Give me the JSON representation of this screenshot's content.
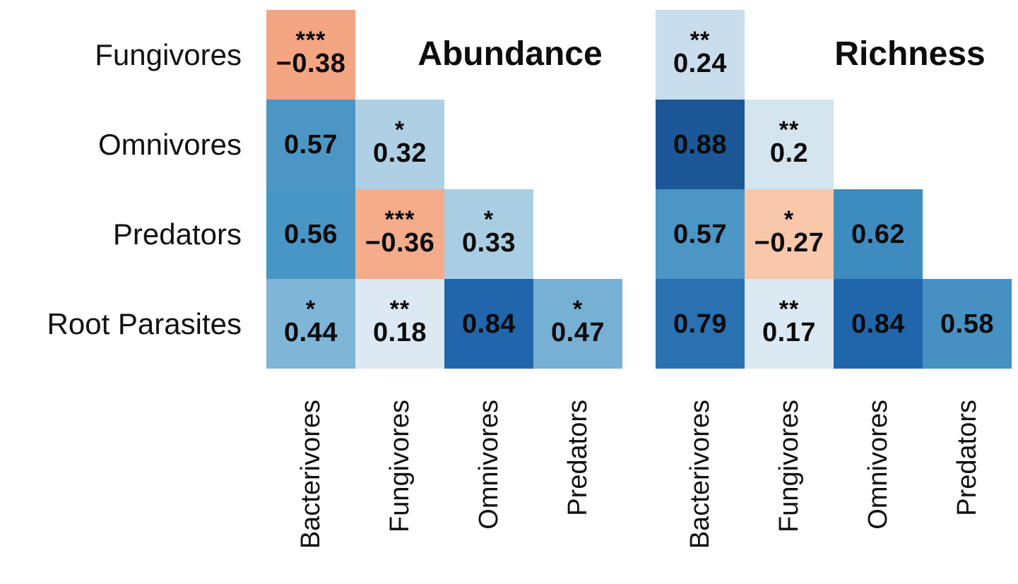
{
  "chart_data": {
    "type": "heatmap",
    "subtype": "lower-triangular-correlation-matrix-pair",
    "legend_position": "none",
    "grid": false,
    "row_labels": [
      "Fungivores",
      "Omnivores",
      "Predators",
      "Root Parasites"
    ],
    "col_labels": [
      "Bacterivores",
      "Fungivores",
      "Omnivores",
      "Predators"
    ],
    "value_range": [
      -1,
      1
    ],
    "colors": {
      "negative_accent": "#F4A582",
      "positive_accent": "#2166AC",
      "background": "#ffffff",
      "text": "#0a0a0a"
    },
    "panels": [
      {
        "title": "Abundance",
        "cells": [
          {
            "row": 0,
            "col": 0,
            "value": -0.38,
            "display": "−0.38",
            "stars": "***",
            "color": "#F4A582"
          },
          {
            "row": 1,
            "col": 0,
            "value": 0.57,
            "display": "0.57",
            "stars": "",
            "color": "#4B96C5"
          },
          {
            "row": 1,
            "col": 1,
            "value": 0.32,
            "display": "0.32",
            "stars": "*",
            "color": "#AFD0E4"
          },
          {
            "row": 2,
            "col": 0,
            "value": 0.56,
            "display": "0.56",
            "stars": "",
            "color": "#4896C5"
          },
          {
            "row": 2,
            "col": 1,
            "value": -0.36,
            "display": "−0.36",
            "stars": "***",
            "color": "#F5AC8B"
          },
          {
            "row": 2,
            "col": 2,
            "value": 0.33,
            "display": "0.33",
            "stars": "*",
            "color": "#A9CEE3"
          },
          {
            "row": 3,
            "col": 0,
            "value": 0.44,
            "display": "0.44",
            "stars": "*",
            "color": "#7FB5D7"
          },
          {
            "row": 3,
            "col": 1,
            "value": 0.18,
            "display": "0.18",
            "stars": "**",
            "color": "#DCE9F2"
          },
          {
            "row": 3,
            "col": 2,
            "value": 0.84,
            "display": "0.84",
            "stars": "",
            "color": "#2166AC"
          },
          {
            "row": 3,
            "col": 3,
            "value": 0.47,
            "display": "0.47",
            "stars": "*",
            "color": "#76B0D4"
          }
        ]
      },
      {
        "title": "Richness",
        "cells": [
          {
            "row": 0,
            "col": 0,
            "value": 0.24,
            "display": "0.24",
            "stars": "**",
            "color": "#C9DDEC"
          },
          {
            "row": 1,
            "col": 0,
            "value": 0.88,
            "display": "0.88",
            "stars": "",
            "color": "#1B5796"
          },
          {
            "row": 1,
            "col": 1,
            "value": 0.2,
            "display": "0.2",
            "stars": "**",
            "color": "#D5E5F0"
          },
          {
            "row": 2,
            "col": 0,
            "value": 0.57,
            "display": "0.57",
            "stars": "",
            "color": "#4B96C5"
          },
          {
            "row": 2,
            "col": 1,
            "value": -0.27,
            "display": "−0.27",
            "stars": "*",
            "color": "#F9C7A9"
          },
          {
            "row": 2,
            "col": 2,
            "value": 0.62,
            "display": "0.62",
            "stars": "",
            "color": "#3E8BC0"
          },
          {
            "row": 3,
            "col": 0,
            "value": 0.79,
            "display": "0.79",
            "stars": "",
            "color": "#2A71B2"
          },
          {
            "row": 3,
            "col": 1,
            "value": 0.17,
            "display": "0.17",
            "stars": "**",
            "color": "#DBE9F2"
          },
          {
            "row": 3,
            "col": 2,
            "value": 0.84,
            "display": "0.84",
            "stars": "",
            "color": "#2066AA"
          },
          {
            "row": 3,
            "col": 3,
            "value": 0.58,
            "display": "0.58",
            "stars": "",
            "color": "#4690C2"
          }
        ]
      }
    ]
  }
}
